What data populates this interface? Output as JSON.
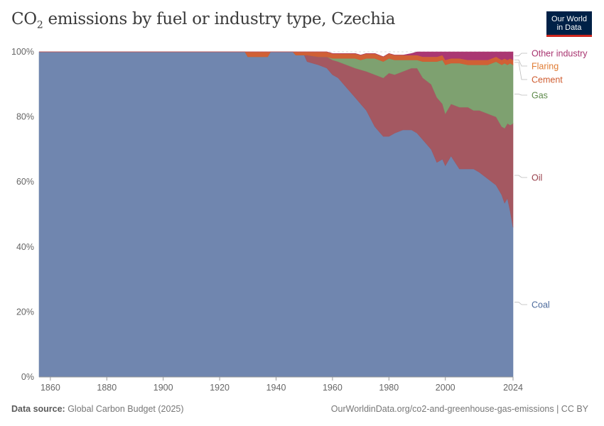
{
  "header": {
    "title_prefix": "CO",
    "title_sub": "2",
    "title_rest": " emissions by fuel or industry type, Czechia",
    "logo_line1": "Our World",
    "logo_line2": "in Data"
  },
  "footer": {
    "source_label": "Data source:",
    "source_text": " Global Carbon Budget (2025)",
    "link_text": "OurWorldinData.org/co2-and-greenhouse-gas-emissions",
    "license_text": " | CC BY"
  },
  "chart_data": {
    "type": "area",
    "stacked": true,
    "normalized": true,
    "title": "CO₂ emissions by fuel or industry type, Czechia",
    "xlim": [
      1856,
      2024
    ],
    "ylim": [
      0,
      100
    ],
    "x_ticks": [
      1860,
      1880,
      1900,
      1920,
      1940,
      1960,
      1980,
      2000,
      2024
    ],
    "y_ticks": [
      0,
      20,
      40,
      60,
      80,
      100
    ],
    "y_tick_labels": [
      "0%",
      "20%",
      "40%",
      "60%",
      "80%",
      "100%"
    ],
    "x": [
      1856,
      1929,
      1930,
      1937,
      1938,
      1946,
      1947,
      1950,
      1951,
      1955,
      1958,
      1960,
      1962,
      1965,
      1968,
      1970,
      1972,
      1975,
      1978,
      1980,
      1982,
      1985,
      1988,
      1990,
      1992,
      1995,
      1997,
      1999,
      2000,
      2002,
      2005,
      2008,
      2010,
      2012,
      2015,
      2018,
      2020,
      2021,
      2022,
      2023,
      2024
    ],
    "series": [
      {
        "name": "Coal",
        "color": "#6d84ad",
        "values": [
          100,
          100,
          98.5,
          98.5,
          100,
          100,
          99,
          99,
          97,
          96,
          95,
          93,
          92,
          89,
          86,
          84,
          82,
          77,
          74,
          74,
          75,
          76,
          76,
          75,
          73,
          70,
          66,
          67,
          65,
          68,
          64,
          64,
          64,
          63,
          61,
          59,
          56,
          53.5,
          55,
          51,
          46
        ]
      },
      {
        "name": "Oil",
        "color": "#a2555e",
        "values": [
          0,
          0,
          0,
          0,
          0,
          0,
          0,
          0,
          2,
          2.5,
          3.5,
          4.5,
          5,
          7,
          9,
          10.5,
          12,
          16,
          18,
          19.5,
          18,
          18,
          19,
          20,
          19,
          20,
          20,
          17,
          16,
          16,
          19,
          19,
          18,
          19,
          20,
          21,
          21,
          23,
          23,
          26.5,
          32
        ]
      },
      {
        "name": "Gas",
        "color": "#7b9f6d",
        "values": [
          0,
          0,
          0,
          0,
          0,
          0,
          0,
          0,
          0,
          0,
          0,
          0.5,
          1,
          2,
          3,
          3,
          4,
          5,
          5,
          4.5,
          4.5,
          3.5,
          2.5,
          2.5,
          5,
          7,
          11,
          13.5,
          15,
          12.5,
          13.5,
          13,
          14,
          14,
          15,
          17,
          19,
          20,
          18,
          19,
          18
        ]
      },
      {
        "name": "Cement",
        "color": "#cf5d31",
        "values": [
          0,
          0,
          1.5,
          1.5,
          0,
          0,
          1,
          1,
          1,
          1.5,
          1.5,
          1.5,
          1.5,
          1.5,
          1.5,
          1.5,
          1.5,
          1.5,
          1.5,
          1.5,
          1.5,
          1.5,
          1.5,
          1.5,
          1.5,
          1.5,
          1.5,
          1.5,
          1.5,
          1.5,
          1.5,
          1.5,
          1.5,
          1.5,
          1.5,
          1.5,
          1.5,
          1.5,
          1.5,
          1.5,
          1.5
        ]
      },
      {
        "name": "Flaring",
        "color": "#e38b47",
        "values": [
          0,
          0,
          0,
          0,
          0,
          0,
          0,
          0,
          0,
          0,
          0,
          0,
          0,
          0,
          0,
          0,
          0,
          0,
          0,
          0,
          0,
          0,
          0,
          0,
          0,
          0,
          0,
          0,
          0,
          0,
          0,
          0,
          0,
          0,
          0,
          0,
          0,
          0,
          0,
          0,
          0
        ]
      },
      {
        "name": "Other industry",
        "color": "#a8336f",
        "values": [
          0,
          0,
          0,
          0,
          0,
          0,
          0,
          0,
          0,
          0,
          0,
          0,
          0,
          0,
          0,
          0,
          0,
          0,
          0,
          0,
          0,
          0,
          0.5,
          1,
          1.5,
          1.5,
          1.5,
          1,
          2.5,
          2,
          2,
          2.5,
          2.5,
          2.5,
          2.5,
          1.5,
          2.5,
          2,
          2.5,
          2,
          2.5
        ]
      }
    ],
    "legend": [
      {
        "name": "Other industry",
        "color": "#a8336f",
        "text_color": "#a8336f"
      },
      {
        "name": "Flaring",
        "color": "#e38b47",
        "text_color": "#e07b32"
      },
      {
        "name": "Cement",
        "color": "#cf5d31",
        "text_color": "#cf5d31"
      },
      {
        "name": "Gas",
        "color": "#7b9f6d",
        "text_color": "#5e8a4b"
      },
      {
        "name": "Oil",
        "color": "#a2555e",
        "text_color": "#98404b"
      },
      {
        "name": "Coal",
        "color": "#6d84ad",
        "text_color": "#4c6a9c"
      }
    ],
    "legend_position": "right"
  }
}
